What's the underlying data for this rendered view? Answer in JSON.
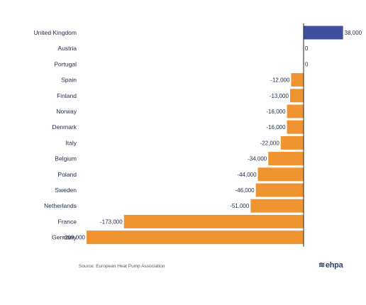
{
  "chart_data": {
    "type": "bar",
    "orientation": "horizontal",
    "categories": [
      "United Kingdom",
      "Austria",
      "Portugal",
      "Spain",
      "Finland",
      "Norway",
      "Denmark",
      "Italy",
      "Belgium",
      "Poland",
      "Sweden",
      "Netherlands",
      "France",
      "Germany"
    ],
    "values": [
      38000,
      0,
      0,
      -12000,
      -13000,
      -16000,
      -16000,
      -22000,
      -34000,
      -44000,
      -46000,
      -51000,
      -173000,
      -209000
    ],
    "value_labels": [
      "38,000",
      "0",
      "0",
      "-12,000",
      "-13,000",
      "-16,000",
      "-16,000",
      "-22,000",
      "-34,000",
      "-44,000",
      "-46,000",
      "-51,000",
      "-173,000",
      "-209,000"
    ],
    "colors": {
      "positive": "#3f4fa0",
      "negative": "#ef9431",
      "axis": "#222222"
    },
    "xlim": [
      -209000,
      38000
    ],
    "grid": false,
    "legend": "none"
  },
  "footer": {
    "source": "Source: European Heat Pump Association",
    "logo_text": "ehpa",
    "logo_glyph": "≋"
  }
}
